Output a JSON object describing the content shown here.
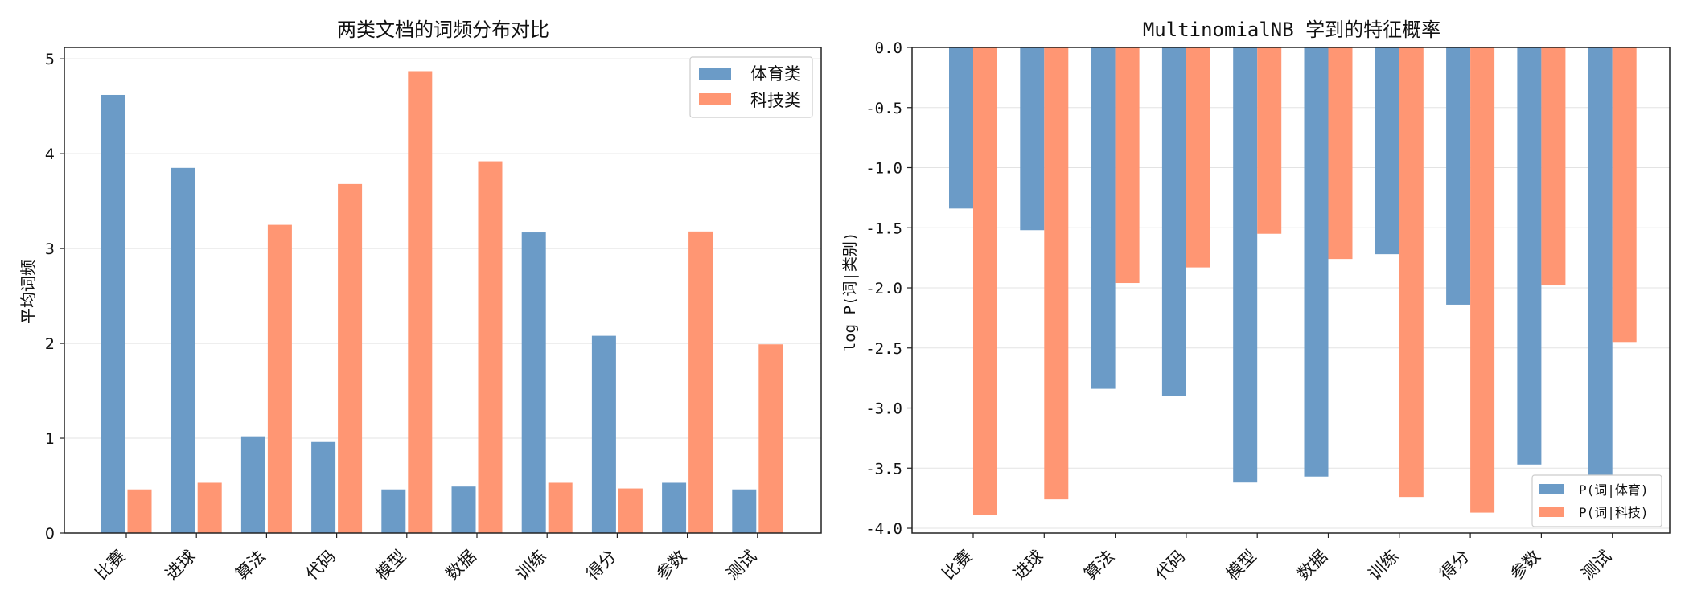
{
  "chart_data": [
    {
      "type": "bar",
      "title": "两类文档的词频分布对比",
      "xlabel": "",
      "ylabel": "平均词频",
      "categories": [
        "比赛",
        "进球",
        "算法",
        "代码",
        "模型",
        "数据",
        "训练",
        "得分",
        "参数",
        "测试"
      ],
      "yticks": [
        "0",
        "1",
        "2",
        "3",
        "4",
        "5"
      ],
      "ylim": [
        0,
        5.12
      ],
      "grid": "horizontal",
      "legend_position": "top-right",
      "series": [
        {
          "name": "体育类",
          "color": "#6b9bc7",
          "values": [
            4.62,
            3.85,
            1.02,
            0.96,
            0.46,
            0.49,
            3.17,
            2.08,
            0.53,
            0.46
          ]
        },
        {
          "name": "科技类",
          "color": "#ff9673",
          "values": [
            0.46,
            0.53,
            3.25,
            3.68,
            4.87,
            3.92,
            0.53,
            0.47,
            3.18,
            1.99
          ]
        }
      ]
    },
    {
      "type": "bar",
      "title": "MultinomialNB 学到的特征概率",
      "xlabel": "",
      "ylabel": "log P(词|类别)",
      "categories": [
        "比赛",
        "进球",
        "算法",
        "代码",
        "模型",
        "数据",
        "训练",
        "得分",
        "参数",
        "测试"
      ],
      "yticks": [
        "0.0",
        "-0.5",
        "-1.0",
        "-1.5",
        "-2.0",
        "-2.5",
        "-3.0",
        "-3.5",
        "-4.0"
      ],
      "ylim": [
        -4.04,
        0
      ],
      "grid": "horizontal",
      "legend_position": "bottom-right",
      "series": [
        {
          "name": "P(词|体育)",
          "color": "#6b9bc7",
          "values": [
            -1.34,
            -1.52,
            -2.84,
            -2.9,
            -3.62,
            -3.57,
            -1.72,
            -2.14,
            -3.47,
            -3.6
          ]
        },
        {
          "name": "P(词|科技)",
          "color": "#ff9673",
          "values": [
            -3.89,
            -3.76,
            -1.96,
            -1.83,
            -1.55,
            -1.76,
            -3.74,
            -3.87,
            -1.98,
            -2.45
          ]
        }
      ]
    }
  ]
}
